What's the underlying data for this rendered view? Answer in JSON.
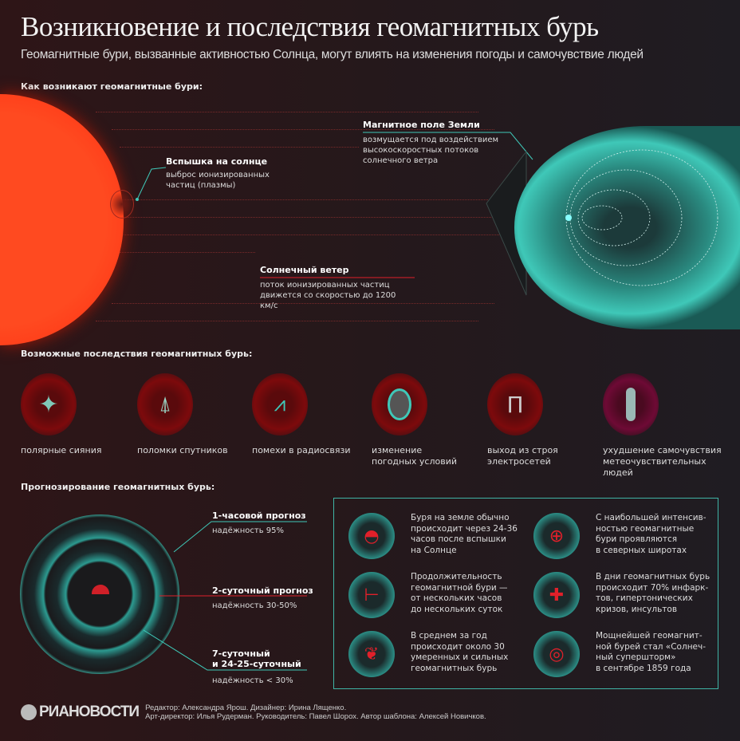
{
  "title": "Возникновение и последствия геомагнитных бурь",
  "subtitle": "Геомагнитные бури, вызванные активностью Солнца, могут влиять на изменения погоды и самочувствие людей",
  "origin": {
    "heading": "Как возникают геомагнитные бури:",
    "flare": {
      "title": "Вспышка на солнце",
      "desc": "выброс ионизированных частиц (плазмы)"
    },
    "field": {
      "title": "Магнитное поле Земли",
      "desc": "возмущается под воздействием высокоскоростных потоков солнечного ветра"
    },
    "wind": {
      "title": "Солнечный ветер",
      "desc": "поток ионизированных частиц движется со скоростью до 1200 км/с"
    }
  },
  "effects": {
    "heading": "Возможные последствия геомагнитных бурь:",
    "items": [
      {
        "icon": "aurora-icon",
        "label": "полярные сияния"
      },
      {
        "icon": "satellite-icon",
        "label": "поломки спутников"
      },
      {
        "icon": "radio-wave-icon",
        "label": "помехи в радиосвязи"
      },
      {
        "icon": "cyclone-icon",
        "label": "изменение погодных условий"
      },
      {
        "icon": "power-line-icon",
        "label": "выход из строя электросетей"
      },
      {
        "icon": "pill-icon",
        "label": "ухудшение самочувствия метеочувствительных людей"
      }
    ]
  },
  "forecast": {
    "heading": "Прогнозирование геомагнитных бурь:",
    "items": [
      {
        "title": "1-часовой прогноз",
        "reliability": "надёжность 95%"
      },
      {
        "title": "2-суточный прогноз",
        "reliability": "надёжность 30-50%"
      },
      {
        "title": "7-суточный\nи 24-25-суточный",
        "reliability": "надёжность < 30%"
      }
    ]
  },
  "facts": [
    {
      "icon": "gauge-icon",
      "text": "Буря на земле обычно\nпроисходит через 24-36\nчасов после вспышки\nна Солнце"
    },
    {
      "icon": "globe-icon",
      "text": "С наибольшей интенсив-\nностью геомагнитные\nбури проявляются\nв северных широтах"
    },
    {
      "icon": "clock-icon",
      "text": "Продолжительность\nгеомагнитной бури —\nот нескольких часов\nдо нескольких суток"
    },
    {
      "icon": "medical-cross-icon",
      "text": "В дни геомагнитных бурь\nпроисходит 70% инфарк-\nтов, гипертонических\nкризов, инсультов"
    },
    {
      "icon": "lungs-icon",
      "text": "В среднем за год\nпроисходит около 30\nумеренных и сильных\nгеомагнитных бурь"
    },
    {
      "icon": "spiral-icon",
      "text": "Мощнейшей геомагнит-\nной бурей стал «Солнеч-\nный супершторм»\nв сентябре 1859 года"
    }
  ],
  "footer": {
    "logo": "РИАНОВОСТИ",
    "credits1": "Редактор: Александра Ярош. Дизайнер: Ирина Лященко.",
    "credits2": "Арт-директор: Илья Рудерман. Руководитель: Павел Шорох. Автор шаблона: Алексей Новичков."
  },
  "colors": {
    "sun": "#ff3a1a",
    "magnetosphere": "#3fc8b8",
    "accent_red": "#e0202a",
    "background": "#2a181b"
  }
}
